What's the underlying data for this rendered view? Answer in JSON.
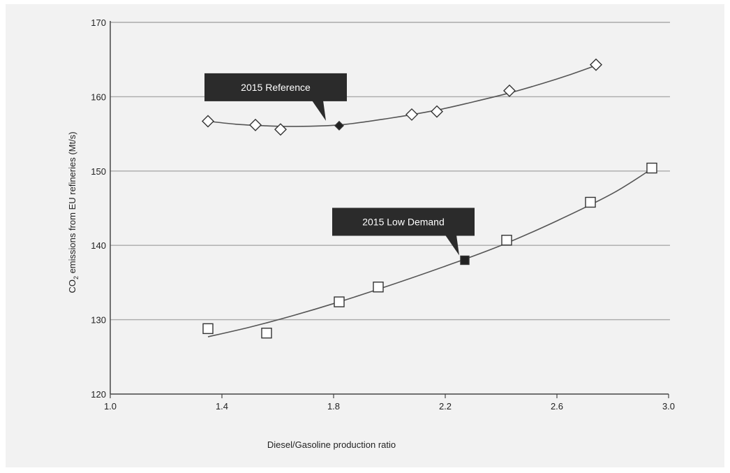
{
  "chart_data": {
    "type": "scatter",
    "title": "",
    "xlabel": "Diesel/Gasoline production ratio",
    "ylabel_main": "CO",
    "ylabel_sub": "2",
    "ylabel_rest": " emissions from  EU refineries (Mt/s)",
    "xlim": [
      1.0,
      3.0
    ],
    "ylim": [
      120,
      170
    ],
    "xticks": [
      "1.0",
      "1.4",
      "1.8",
      "2.2",
      "2.6",
      "3.0"
    ],
    "yticks": [
      "120",
      "130",
      "140",
      "150",
      "160",
      "170"
    ],
    "grid": "horizontal",
    "series": [
      {
        "name": "2015 Reference",
        "marker": "diamond",
        "points": [
          [
            1.35,
            156.7
          ],
          [
            1.52,
            156.2
          ],
          [
            1.61,
            155.6
          ],
          [
            2.08,
            157.6
          ],
          [
            2.17,
            158.0
          ],
          [
            2.43,
            160.8
          ],
          [
            2.74,
            164.3
          ]
        ],
        "highlight": [
          1.82,
          156.1
        ],
        "fit": [
          [
            1.35,
            156.7
          ],
          [
            1.45,
            156.3
          ],
          [
            1.55,
            156.1
          ],
          [
            1.65,
            156.0
          ],
          [
            1.82,
            156.2
          ],
          [
            2.0,
            157.1
          ],
          [
            2.17,
            158.2
          ],
          [
            2.3,
            159.3
          ],
          [
            2.43,
            160.5
          ],
          [
            2.55,
            161.8
          ],
          [
            2.65,
            163.0
          ],
          [
            2.74,
            164.2
          ]
        ]
      },
      {
        "name": "2015 Low Demand",
        "marker": "square",
        "points": [
          [
            1.35,
            128.8
          ],
          [
            1.56,
            128.2
          ],
          [
            1.82,
            132.4
          ],
          [
            1.96,
            134.4
          ],
          [
            2.42,
            140.7
          ],
          [
            2.72,
            145.8
          ],
          [
            2.94,
            150.4
          ]
        ],
        "highlight": [
          2.27,
          138.0
        ],
        "fit": [
          [
            1.35,
            127.7
          ],
          [
            1.5,
            129.0
          ],
          [
            1.65,
            130.5
          ],
          [
            1.82,
            132.4
          ],
          [
            2.0,
            134.6
          ],
          [
            2.2,
            137.2
          ],
          [
            2.4,
            140.0
          ],
          [
            2.6,
            143.3
          ],
          [
            2.8,
            147.0
          ],
          [
            2.94,
            150.3
          ]
        ]
      }
    ],
    "annotations": [
      "2015 Reference",
      "2015 Low Demand"
    ]
  },
  "colors": {
    "background": "#f2f2f2",
    "gridline": "#aaaaaa",
    "axis": "#444444",
    "curve": "#555555",
    "marker_open": "#ffffff",
    "marker_stroke": "#333333",
    "marker_filled": "#222222",
    "callout_bg": "#2b2b2b"
  }
}
